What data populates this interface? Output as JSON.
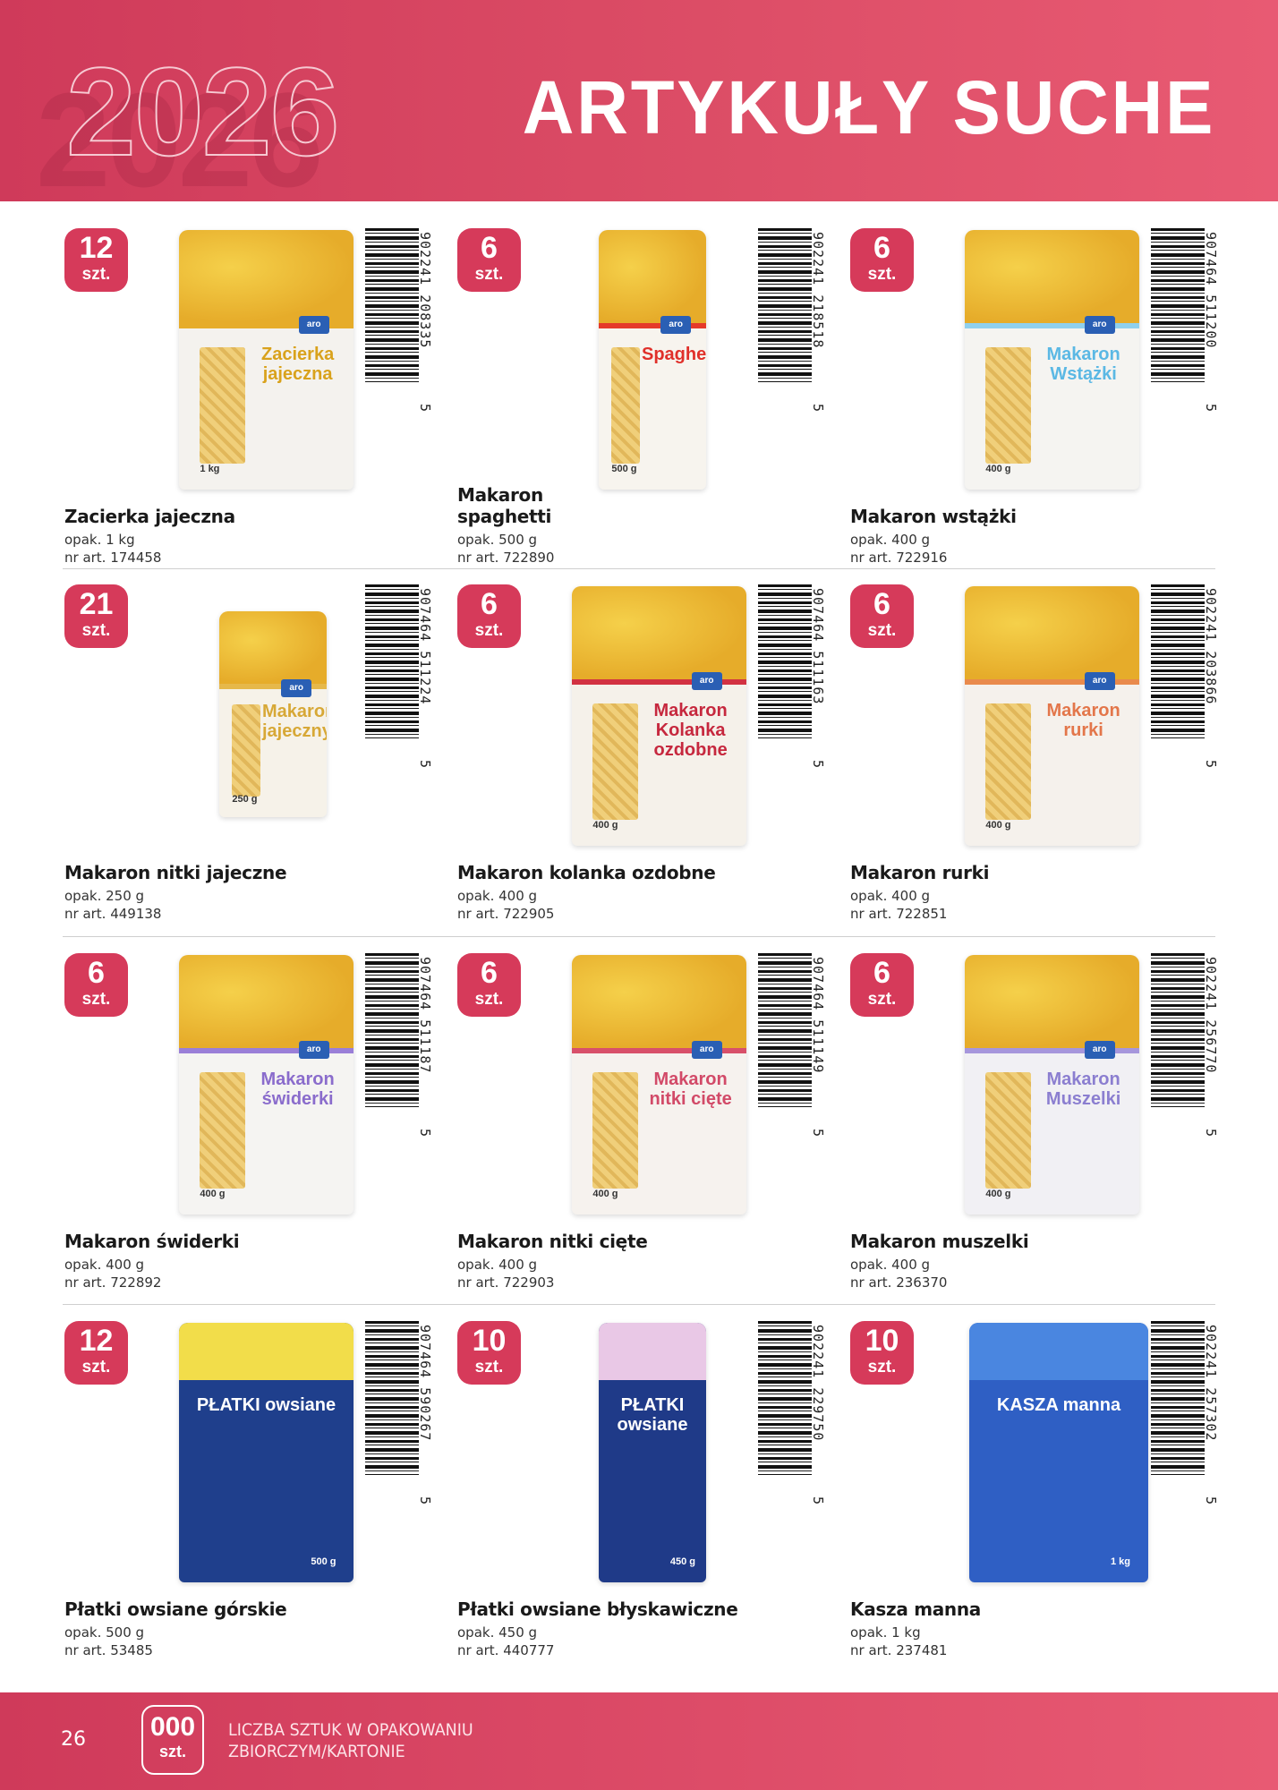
{
  "header": {
    "year": "2026",
    "title": "ARTYKUŁY SUCHE"
  },
  "colors": {
    "accent": "#d63a5a"
  },
  "unit_label": "szt.",
  "products": [
    {
      "count": "12",
      "name": "Zacierka jajeczna",
      "pack": "opak. 1 kg",
      "art": "nr art. 174458",
      "barcode": "902241 208335",
      "barcode_lead": "5",
      "pack_label": "Zacierka jajeczna",
      "pack_weight": "1 kg",
      "pack_style": "pasta-yellow"
    },
    {
      "count": "6",
      "name": "Makaron spaghetti",
      "pack": "opak. 500 g",
      "art": "nr art. 722890",
      "barcode": "902241 218518",
      "barcode_lead": "5",
      "pack_label": "Spaghetti",
      "pack_weight": "500 g",
      "pack_style": "pasta-red-slim"
    },
    {
      "count": "6",
      "name": "Makaron wstążki",
      "pack": "opak. 400 g",
      "art": "nr art. 722916",
      "barcode": "907464 511200",
      "barcode_lead": "5",
      "pack_label": "Makaron Wstążki",
      "pack_weight": "400 g",
      "pack_style": "pasta-blue"
    },
    {
      "count": "21",
      "name": "Makaron nitki jajeczne",
      "pack": "opak. 250 g",
      "art": "nr art. 449138",
      "barcode": "907464 511224",
      "barcode_lead": "5",
      "pack_label": "Makaron jajeczny",
      "pack_weight": "250 g",
      "pack_style": "pasta-gold-small"
    },
    {
      "count": "6",
      "name": "Makaron kolanka ozdobne",
      "pack": "opak. 400 g",
      "art": "nr art. 722905",
      "barcode": "907464 511163",
      "barcode_lead": "5",
      "pack_label": "Makaron Kolanka ozdobne",
      "pack_weight": "400 g",
      "pack_style": "pasta-red"
    },
    {
      "count": "6",
      "name": "Makaron rurki",
      "pack": "opak. 400 g",
      "art": "nr art. 722851",
      "barcode": "902241 203866",
      "barcode_lead": "5",
      "pack_label": "Makaron rurki",
      "pack_weight": "400 g",
      "pack_style": "pasta-orange"
    },
    {
      "count": "6",
      "name": "Makaron świderki",
      "pack": "opak. 400 g",
      "art": "nr art. 722892",
      "barcode": "907464 511187",
      "barcode_lead": "5",
      "pack_label": "Makaron świderki",
      "pack_weight": "400 g",
      "pack_style": "pasta-purple"
    },
    {
      "count": "6",
      "name": "Makaron nitki cięte",
      "pack": "opak. 400 g",
      "art": "nr art. 722903",
      "barcode": "907464 511149",
      "barcode_lead": "5",
      "pack_label": "Makaron nitki cięte",
      "pack_weight": "400 g",
      "pack_style": "pasta-pink"
    },
    {
      "count": "6",
      "name": "Makaron muszelki",
      "pack": "opak. 400 g",
      "art": "nr art. 236370",
      "barcode": "902241 256770",
      "barcode_lead": "5",
      "pack_label": "Makaron Muszelki",
      "pack_weight": "400 g",
      "pack_style": "pasta-lilac"
    },
    {
      "count": "12",
      "name": "Płatki owsiane górskie",
      "pack": "opak. 500 g",
      "art": "nr art. 53485",
      "barcode": "907464 590267",
      "barcode_lead": "5",
      "pack_label": "PŁATKI owsiane",
      "pack_weight": "500 g",
      "pack_style": "oats-yellow"
    },
    {
      "count": "10",
      "name": "Płatki owsiane błyskawiczne",
      "pack": "opak. 450 g",
      "art": "nr art. 440777",
      "barcode": "902241 229750",
      "barcode_lead": "5",
      "pack_label": "PŁATKI owsiane",
      "pack_weight": "450 g",
      "pack_style": "oats-pink"
    },
    {
      "count": "10",
      "name": "Kasza manna",
      "pack": "opak. 1 kg",
      "art": "nr art. 237481",
      "barcode": "902241 257302",
      "barcode_lead": "5",
      "pack_label": "KASZA manna",
      "pack_weight": "1 kg",
      "pack_style": "semolina-blue"
    }
  ],
  "footer": {
    "page": "26",
    "badge_number": "000",
    "badge_unit": "szt.",
    "legend_line1": "LICZBA SZTUK W OPAKOWANIU",
    "legend_line2": "ZBIORCZYM/KARTONIE"
  }
}
